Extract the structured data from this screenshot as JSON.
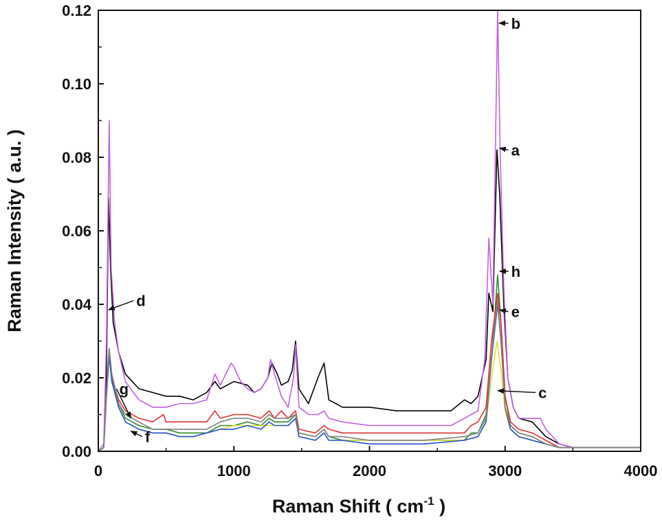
{
  "chart_data": {
    "type": "line",
    "xlabel": "Raman Shift ( cm",
    "xlabel_sup": "-1",
    "xlabel_tail": " )",
    "ylabel": "Raman Intensity  ( a.u. )",
    "xlim": [
      0,
      4000
    ],
    "ylim": [
      0,
      0.12
    ],
    "x_ticks": [
      0,
      1000,
      2000,
      3000,
      4000
    ],
    "x_tick_labels": [
      "0",
      "1000",
      "2000",
      "3000",
      "4000"
    ],
    "y_ticks": [
      0,
      0.02,
      0.04,
      0.06,
      0.08,
      0.1,
      0.12
    ],
    "y_tick_labels": [
      "0.00",
      "0.02",
      "0.04",
      "0.06",
      "0.08",
      "0.10",
      "0.12"
    ],
    "grid": false,
    "series": [
      {
        "name": "a",
        "color": "#000000",
        "x": [
          0,
          40,
          60,
          75,
          90,
          110,
          150,
          200,
          300,
          400,
          500,
          600,
          700,
          800,
          860,
          900,
          1000,
          1100,
          1150,
          1200,
          1250,
          1280,
          1320,
          1350,
          1400,
          1430,
          1455,
          1480,
          1550,
          1620,
          1665,
          1700,
          1800,
          2000,
          2200,
          2400,
          2600,
          2700,
          2750,
          2800,
          2860,
          2880,
          2910,
          2940,
          2960,
          2990,
          3020,
          3060,
          3100,
          3200,
          3300,
          3400,
          3500,
          3600,
          4000
        ],
        "y": [
          0,
          0.001,
          0.02,
          0.069,
          0.05,
          0.035,
          0.027,
          0.021,
          0.017,
          0.016,
          0.015,
          0.015,
          0.014,
          0.016,
          0.019,
          0.017,
          0.019,
          0.018,
          0.016,
          0.017,
          0.02,
          0.024,
          0.021,
          0.018,
          0.019,
          0.022,
          0.03,
          0.017,
          0.013,
          0.02,
          0.024,
          0.014,
          0.012,
          0.012,
          0.011,
          0.011,
          0.011,
          0.014,
          0.013,
          0.015,
          0.025,
          0.043,
          0.038,
          0.082,
          0.07,
          0.04,
          0.02,
          0.012,
          0.009,
          0.008,
          0.004,
          0.002,
          0.001,
          0.001,
          0.001
        ]
      },
      {
        "name": "b",
        "color": "#c060e0",
        "x": [
          0,
          40,
          60,
          70,
          80,
          95,
          120,
          150,
          200,
          300,
          400,
          500,
          600,
          700,
          800,
          860,
          900,
          980,
          1000,
          1050,
          1100,
          1150,
          1200,
          1250,
          1270,
          1300,
          1350,
          1400,
          1440,
          1455,
          1480,
          1550,
          1620,
          1665,
          1700,
          1800,
          2000,
          2200,
          2400,
          2600,
          2700,
          2750,
          2800,
          2850,
          2880,
          2910,
          2945,
          2965,
          2990,
          3020,
          3060,
          3100,
          3200,
          3260,
          3300,
          3400,
          3500,
          3600,
          4000
        ],
        "y": [
          0,
          0.002,
          0.03,
          0.059,
          0.09,
          0.05,
          0.035,
          0.027,
          0.019,
          0.014,
          0.012,
          0.012,
          0.013,
          0.013,
          0.014,
          0.021,
          0.018,
          0.024,
          0.023,
          0.019,
          0.017,
          0.016,
          0.017,
          0.02,
          0.025,
          0.021,
          0.015,
          0.012,
          0.02,
          0.029,
          0.012,
          0.01,
          0.01,
          0.011,
          0.009,
          0.008,
          0.007,
          0.007,
          0.007,
          0.007,
          0.009,
          0.01,
          0.011,
          0.025,
          0.058,
          0.04,
          0.12,
          0.08,
          0.045,
          0.02,
          0.012,
          0.009,
          0.009,
          0.009,
          0.006,
          0.002,
          0.001,
          0.001,
          0.001
        ]
      },
      {
        "name": "h",
        "color": "#2e8b2e",
        "x": [
          0,
          40,
          60,
          80,
          100,
          150,
          200,
          300,
          400,
          500,
          600,
          700,
          800,
          900,
          1000,
          1100,
          1200,
          1260,
          1300,
          1400,
          1455,
          1480,
          1600,
          1665,
          1700,
          1800,
          2000,
          2400,
          2700,
          2750,
          2800,
          2860,
          2900,
          2945,
          2970,
          3000,
          3040,
          3100,
          3200,
          3300,
          3400,
          3500,
          4000
        ],
        "y": [
          0,
          0.001,
          0.015,
          0.028,
          0.02,
          0.013,
          0.009,
          0.007,
          0.006,
          0.006,
          0.005,
          0.005,
          0.005,
          0.007,
          0.007,
          0.008,
          0.007,
          0.009,
          0.008,
          0.008,
          0.01,
          0.005,
          0.004,
          0.006,
          0.004,
          0.003,
          0.003,
          0.003,
          0.003,
          0.005,
          0.005,
          0.01,
          0.025,
          0.048,
          0.035,
          0.015,
          0.007,
          0.005,
          0.004,
          0.002,
          0.001,
          0.001,
          0.001
        ]
      },
      {
        "name": "e",
        "color": "#e03030",
        "x": [
          0,
          40,
          60,
          80,
          100,
          150,
          200,
          300,
          400,
          480,
          500,
          600,
          700,
          800,
          860,
          900,
          1000,
          1100,
          1200,
          1260,
          1300,
          1350,
          1400,
          1455,
          1480,
          1600,
          1665,
          1700,
          1800,
          2000,
          2400,
          2700,
          2750,
          2800,
          2860,
          2900,
          2945,
          2970,
          3000,
          3040,
          3100,
          3200,
          3300,
          3400,
          3500,
          4000
        ],
        "y": [
          0,
          0.001,
          0.015,
          0.027,
          0.02,
          0.014,
          0.011,
          0.009,
          0.008,
          0.01,
          0.008,
          0.008,
          0.008,
          0.008,
          0.011,
          0.009,
          0.01,
          0.01,
          0.009,
          0.011,
          0.009,
          0.011,
          0.009,
          0.011,
          0.006,
          0.005,
          0.007,
          0.006,
          0.005,
          0.005,
          0.005,
          0.005,
          0.007,
          0.008,
          0.012,
          0.03,
          0.043,
          0.035,
          0.015,
          0.008,
          0.006,
          0.005,
          0.003,
          0.001,
          0.001,
          0.001
        ]
      },
      {
        "name": "c",
        "color": "#e0e030",
        "x": [
          0,
          40,
          60,
          80,
          100,
          150,
          200,
          300,
          400,
          500,
          600,
          700,
          800,
          900,
          1000,
          1100,
          1200,
          1300,
          1400,
          1455,
          1480,
          1600,
          1665,
          1700,
          1800,
          2000,
          2400,
          2700,
          2800,
          2860,
          2900,
          2940,
          2970,
          3000,
          3040,
          3100,
          3200,
          3300,
          3400,
          4000
        ],
        "y": [
          0,
          0.001,
          0.014,
          0.026,
          0.019,
          0.012,
          0.008,
          0.006,
          0.005,
          0.005,
          0.004,
          0.004,
          0.005,
          0.006,
          0.007,
          0.007,
          0.007,
          0.007,
          0.007,
          0.009,
          0.004,
          0.003,
          0.005,
          0.003,
          0.003,
          0.003,
          0.003,
          0.003,
          0.004,
          0.008,
          0.02,
          0.03,
          0.022,
          0.011,
          0.006,
          0.004,
          0.003,
          0.002,
          0.001,
          0.001
        ]
      },
      {
        "name": "d",
        "color": "#2050d0",
        "x": [
          0,
          40,
          60,
          80,
          100,
          150,
          200,
          300,
          400,
          500,
          600,
          700,
          800,
          900,
          1000,
          1100,
          1200,
          1260,
          1300,
          1400,
          1455,
          1480,
          1600,
          1665,
          1700,
          1800,
          2000,
          2400,
          2700,
          2800,
          2860,
          2900,
          2945,
          2970,
          3000,
          3040,
          3100,
          3200,
          3300,
          3400,
          4000
        ],
        "y": [
          0,
          0.001,
          0.015,
          0.026,
          0.019,
          0.012,
          0.008,
          0.006,
          0.005,
          0.005,
          0.004,
          0.004,
          0.005,
          0.006,
          0.006,
          0.007,
          0.006,
          0.008,
          0.007,
          0.007,
          0.009,
          0.004,
          0.003,
          0.005,
          0.003,
          0.003,
          0.002,
          0.002,
          0.003,
          0.004,
          0.008,
          0.025,
          0.04,
          0.03,
          0.012,
          0.006,
          0.004,
          0.003,
          0.002,
          0.001,
          0.001
        ]
      },
      {
        "name": "g",
        "color": "#808080",
        "x": [
          0,
          40,
          60,
          80,
          100,
          150,
          200,
          300,
          400,
          500,
          600,
          700,
          800,
          900,
          1000,
          1100,
          1200,
          1260,
          1300,
          1400,
          1455,
          1480,
          1600,
          1665,
          1700,
          1800,
          2000,
          2400,
          2700,
          2800,
          2860,
          2900,
          2945,
          2970,
          3000,
          3040,
          3100,
          3200,
          3300,
          3400,
          4000
        ],
        "y": [
          0,
          0.001,
          0.016,
          0.028,
          0.021,
          0.013,
          0.01,
          0.008,
          0.006,
          0.006,
          0.006,
          0.006,
          0.006,
          0.008,
          0.009,
          0.009,
          0.008,
          0.01,
          0.009,
          0.009,
          0.01,
          0.005,
          0.004,
          0.006,
          0.004,
          0.004,
          0.003,
          0.003,
          0.004,
          0.005,
          0.009,
          0.026,
          0.041,
          0.03,
          0.012,
          0.007,
          0.005,
          0.004,
          0.002,
          0.001,
          0.001
        ]
      }
    ],
    "annotations": [
      {
        "label": "b",
        "x": 3045,
        "y": 0.115,
        "target_x": 2955,
        "target_y": 0.1165
      },
      {
        "label": "a",
        "x": 3045,
        "y": 0.0805,
        "target_x": 2960,
        "target_y": 0.0825
      },
      {
        "label": "h",
        "x": 3045,
        "y": 0.0475,
        "target_x": 2960,
        "target_y": 0.049
      },
      {
        "label": "e",
        "x": 3045,
        "y": 0.0365,
        "target_x": 2960,
        "target_y": 0.0385
      },
      {
        "label": "c",
        "x": 3245,
        "y": 0.0145,
        "target_x": 2945,
        "target_y": 0.0165
      },
      {
        "label": "d",
        "x": 280,
        "y": 0.0395,
        "target_x": 75,
        "target_y": 0.0385
      },
      {
        "label": "g",
        "x": 155,
        "y": 0.0155,
        "target_x": 240,
        "target_y": 0.009
      },
      {
        "label": "f",
        "x": 345,
        "y": 0.0025,
        "target_x": 240,
        "target_y": 0.0055
      }
    ]
  }
}
